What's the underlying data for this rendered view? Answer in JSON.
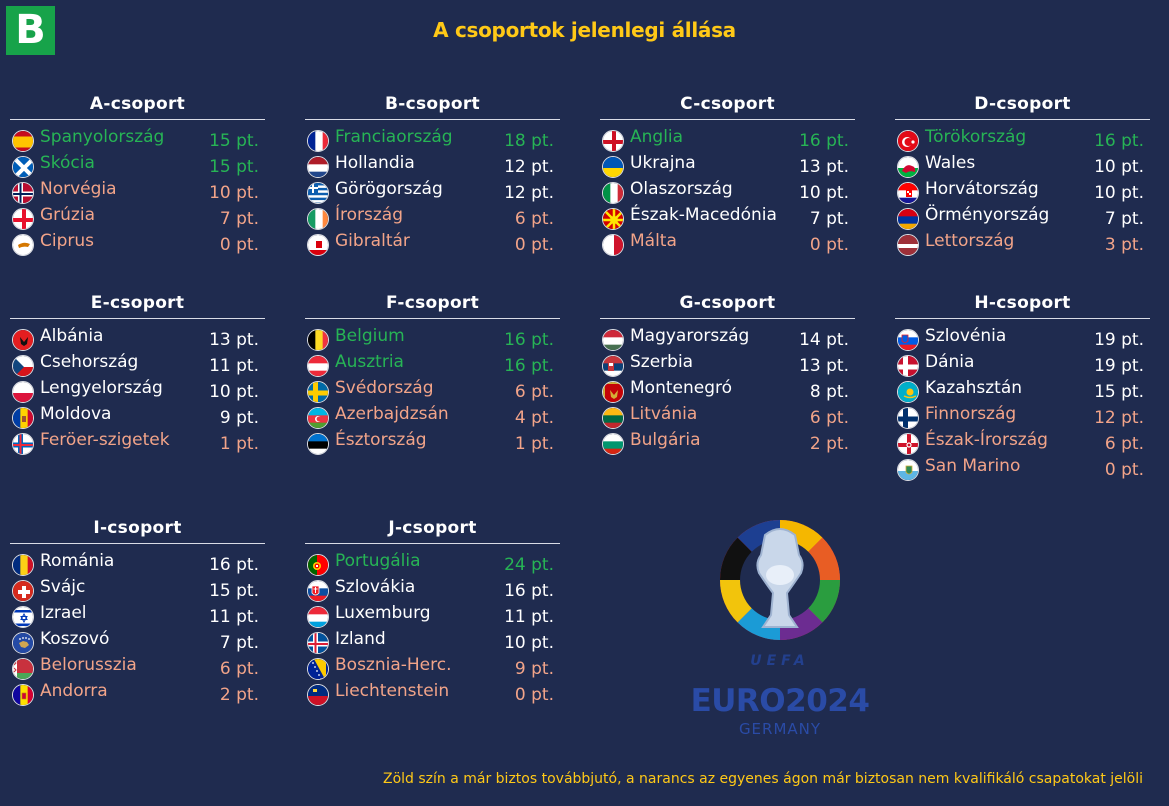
{
  "logo_text": "B",
  "title": "A csoportok jelenlegi állása",
  "groups": [
    {
      "name": "A-csoport",
      "teams": [
        {
          "name": "Spanyolország",
          "pts": "15 pt.",
          "status": "q",
          "flag": "spain"
        },
        {
          "name": "Skócia",
          "pts": "15 pt.",
          "status": "q",
          "flag": "scotland"
        },
        {
          "name": "Norvégia",
          "pts": "10 pt.",
          "status": "o",
          "flag": "norway"
        },
        {
          "name": "Grúzia",
          "pts": "7 pt.",
          "status": "o",
          "flag": "georgia"
        },
        {
          "name": "Ciprus",
          "pts": "0 pt.",
          "status": "o",
          "flag": "cyprus"
        }
      ]
    },
    {
      "name": "B-csoport",
      "teams": [
        {
          "name": "Franciaország",
          "pts": "18 pt.",
          "status": "q",
          "flag": "france"
        },
        {
          "name": "Hollandia",
          "pts": "12 pt.",
          "status": "n",
          "flag": "netherlands"
        },
        {
          "name": "Görögország",
          "pts": "12 pt.",
          "status": "n",
          "flag": "greece"
        },
        {
          "name": "Írország",
          "pts": "6 pt.",
          "status": "o",
          "flag": "ireland"
        },
        {
          "name": "Gibraltár",
          "pts": "0 pt.",
          "status": "o",
          "flag": "gibraltar"
        }
      ]
    },
    {
      "name": "C-csoport",
      "teams": [
        {
          "name": "Anglia",
          "pts": "16 pt.",
          "status": "q",
          "flag": "england"
        },
        {
          "name": "Ukrajna",
          "pts": "13 pt.",
          "status": "n",
          "flag": "ukraine"
        },
        {
          "name": "Olaszország",
          "pts": "10 pt.",
          "status": "n",
          "flag": "italy"
        },
        {
          "name": "Észak-Macedónia",
          "pts": "7 pt.",
          "status": "n",
          "flag": "macedonia"
        },
        {
          "name": "Málta",
          "pts": "0 pt.",
          "status": "o",
          "flag": "malta"
        }
      ]
    },
    {
      "name": "D-csoport",
      "teams": [
        {
          "name": "Törökország",
          "pts": "16 pt.",
          "status": "q",
          "flag": "turkey"
        },
        {
          "name": "Wales",
          "pts": "10 pt.",
          "status": "n",
          "flag": "wales"
        },
        {
          "name": "Horvátország",
          "pts": "10 pt.",
          "status": "n",
          "flag": "croatia"
        },
        {
          "name": "Örményország",
          "pts": "7 pt.",
          "status": "n",
          "flag": "armenia"
        },
        {
          "name": "Lettország",
          "pts": "3 pt.",
          "status": "o",
          "flag": "latvia"
        }
      ]
    },
    {
      "name": "E-csoport",
      "teams": [
        {
          "name": "Albánia",
          "pts": "13 pt.",
          "status": "n",
          "flag": "albania"
        },
        {
          "name": "Csehország",
          "pts": "11 pt.",
          "status": "n",
          "flag": "czechia"
        },
        {
          "name": "Lengyelország",
          "pts": "10 pt.",
          "status": "n",
          "flag": "poland"
        },
        {
          "name": "Moldova",
          "pts": "9 pt.",
          "status": "n",
          "flag": "moldova"
        },
        {
          "name": "Feröer-szigetek",
          "pts": "1 pt.",
          "status": "o",
          "flag": "faroe"
        }
      ]
    },
    {
      "name": "F-csoport",
      "teams": [
        {
          "name": "Belgium",
          "pts": "16 pt.",
          "status": "q",
          "flag": "belgium"
        },
        {
          "name": "Ausztria",
          "pts": "16 pt.",
          "status": "q",
          "flag": "austria"
        },
        {
          "name": "Svédország",
          "pts": "6 pt.",
          "status": "o",
          "flag": "sweden"
        },
        {
          "name": "Azerbajdzsán",
          "pts": "4 pt.",
          "status": "o",
          "flag": "azerbaijan"
        },
        {
          "name": "Észtország",
          "pts": "1 pt.",
          "status": "o",
          "flag": "estonia"
        }
      ]
    },
    {
      "name": "G-csoport",
      "teams": [
        {
          "name": "Magyarország",
          "pts": "14 pt.",
          "status": "n",
          "flag": "hungary"
        },
        {
          "name": "Szerbia",
          "pts": "13 pt.",
          "status": "n",
          "flag": "serbia"
        },
        {
          "name": "Montenegró",
          "pts": "8 pt.",
          "status": "n",
          "flag": "montenegro"
        },
        {
          "name": "Litvánia",
          "pts": "6 pt.",
          "status": "o",
          "flag": "lithuania"
        },
        {
          "name": "Bulgária",
          "pts": "2 pt.",
          "status": "o",
          "flag": "bulgaria"
        }
      ]
    },
    {
      "name": "H-csoport",
      "teams": [
        {
          "name": "Szlovénia",
          "pts": "19 pt.",
          "status": "n",
          "flag": "slovenia"
        },
        {
          "name": "Dánia",
          "pts": "19 pt.",
          "status": "n",
          "flag": "denmark"
        },
        {
          "name": "Kazahsztán",
          "pts": "15 pt.",
          "status": "n",
          "flag": "kazakhstan"
        },
        {
          "name": "Finnország",
          "pts": "12 pt.",
          "status": "o",
          "flag": "finland"
        },
        {
          "name": "Észak-Írország",
          "pts": "6 pt.",
          "status": "o",
          "flag": "nireland"
        },
        {
          "name": "San Marino",
          "pts": "0 pt.",
          "status": "o",
          "flag": "sanmarino"
        }
      ]
    },
    {
      "name": "I-csoport",
      "teams": [
        {
          "name": "Románia",
          "pts": "16 pt.",
          "status": "n",
          "flag": "romania"
        },
        {
          "name": "Svájc",
          "pts": "15 pt.",
          "status": "n",
          "flag": "switzerland"
        },
        {
          "name": "Izrael",
          "pts": "11 pt.",
          "status": "n",
          "flag": "israel"
        },
        {
          "name": "Koszovó",
          "pts": "7 pt.",
          "status": "n",
          "flag": "kosovo"
        },
        {
          "name": "Belorusszia",
          "pts": "6 pt.",
          "status": "o",
          "flag": "belarus"
        },
        {
          "name": "Andorra",
          "pts": "2 pt.",
          "status": "o",
          "flag": "andorra"
        }
      ]
    },
    {
      "name": "J-csoport",
      "teams": [
        {
          "name": "Portugália",
          "pts": "24 pt.",
          "status": "q",
          "flag": "portugal"
        },
        {
          "name": "Szlovákia",
          "pts": "16 pt.",
          "status": "n",
          "flag": "slovakia"
        },
        {
          "name": "Luxemburg",
          "pts": "11 pt.",
          "status": "n",
          "flag": "luxembourg"
        },
        {
          "name": "Izland",
          "pts": "10 pt.",
          "status": "n",
          "flag": "iceland"
        },
        {
          "name": "Bosznia-Herc.",
          "pts": "9 pt.",
          "status": "o",
          "flag": "bosnia"
        },
        {
          "name": "Liechtenstein",
          "pts": "0 pt.",
          "status": "o",
          "flag": "liechtenstein"
        }
      ]
    }
  ],
  "euro_logo": {
    "uefa": "UEFA",
    "name": "EURO2024",
    "country": "GERMANY"
  },
  "footnote": "Zöld szín a már biztos továbbjutó, a narancs az egyenes ágon már biztosan nem kvalifikáló csapatokat jelöli",
  "colors": {
    "background": "#1f2b4f",
    "title": "#ffc917",
    "qualified": "#27b455",
    "eliminated": "#f2a489",
    "logo": "#17a34a"
  }
}
